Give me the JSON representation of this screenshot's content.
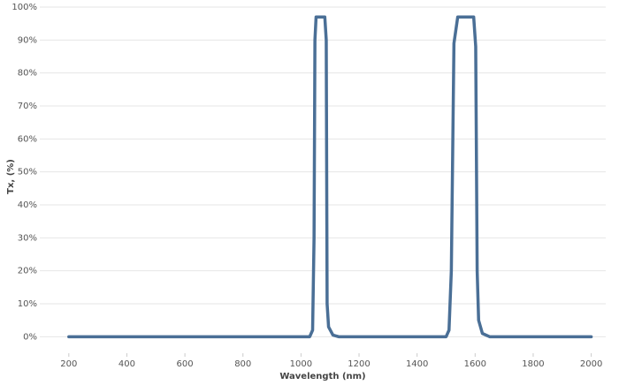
{
  "chart_data": {
    "type": "line",
    "x_label": "Wavelength (nm)",
    "y_label": "Tx, (%)",
    "x": [
      200,
      1030,
      1040,
      1045,
      1048,
      1052,
      1082,
      1087,
      1090,
      1095,
      1110,
      1130,
      1500,
      1510,
      1518,
      1527,
      1540,
      1595,
      1602,
      1607,
      1612,
      1625,
      1650,
      2000
    ],
    "values": [
      0,
      0,
      2,
      30,
      90,
      97,
      97,
      90,
      10,
      3,
      0.5,
      0,
      0,
      2,
      20,
      89,
      97,
      97,
      88,
      20,
      5,
      1,
      0,
      0
    ],
    "color": "#4a6f96",
    "xlim": [
      100,
      2050
    ],
    "ylim": [
      -5,
      100
    ],
    "xticks": [
      200,
      400,
      600,
      800,
      1000,
      1200,
      1400,
      1600,
      1800,
      2000
    ],
    "yticks": [
      {
        "value": 0,
        "label": "0%"
      },
      {
        "value": 10,
        "label": "10%"
      },
      {
        "value": 20,
        "label": "20%"
      },
      {
        "value": 30,
        "label": "30%"
      },
      {
        "value": 40,
        "label": "40%"
      },
      {
        "value": 50,
        "label": "50%"
      },
      {
        "value": 60,
        "label": "60%"
      },
      {
        "value": 70,
        "label": "70%"
      },
      {
        "value": 80,
        "label": "80%"
      },
      {
        "value": 90,
        "label": "90%"
      },
      {
        "value": 100,
        "label": "100%"
      }
    ],
    "grid": true
  }
}
